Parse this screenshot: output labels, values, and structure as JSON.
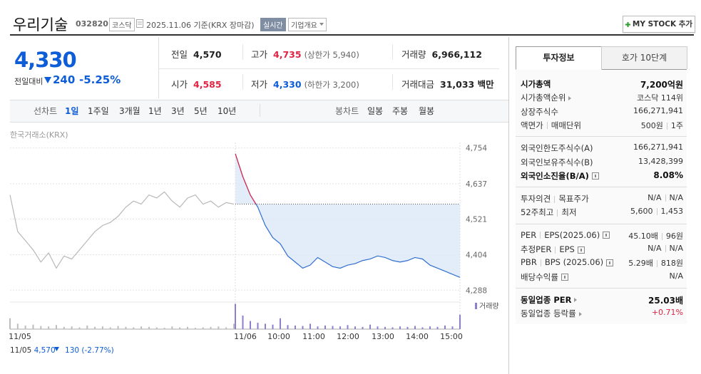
{
  "header": {
    "name": "우리기술",
    "code": "032820",
    "market": "코스닥",
    "date": "2025.11.06",
    "basis": "기준(KRX 장마감)",
    "realtime": "실시간",
    "company_info": "기업개요",
    "my_stock": "MY STOCK 추가"
  },
  "price": {
    "current": "4,330",
    "change_label": "전일대비",
    "change": "240",
    "change_pct": "-5.25%"
  },
  "summary": [
    {
      "label": "전일",
      "value": "4,570",
      "color": "#222222"
    },
    {
      "label": "고가",
      "value": "4,735",
      "note": "(상한가 5,940)",
      "color": "#e12343"
    },
    {
      "label": "거래량",
      "value": "6,966,112",
      "color": "#222222"
    },
    {
      "label": "시가",
      "value": "4,585",
      "color": "#e12343"
    },
    {
      "label": "저가",
      "value": "4,330",
      "note": "(하한가 3,200)",
      "color": "#0d5cd8"
    },
    {
      "label": "거래대금",
      "value": "31,033 백만",
      "color": "#222222"
    }
  ],
  "tabs": {
    "line_label": "선차트",
    "periods": [
      "1일",
      "1주일",
      "3개월",
      "1년",
      "3년",
      "5년",
      "10년"
    ],
    "candle_label": "봉차트",
    "candles": [
      "일봉",
      "주봉",
      "월봉"
    ]
  },
  "chart": {
    "source": "한국거래소(KRX)",
    "ylim": [
      4270,
      4772
    ],
    "yticks": [
      {
        "value": 4754,
        "label": "4,754"
      },
      {
        "value": 4637,
        "label": "4,637"
      },
      {
        "value": 4521,
        "label": "4,521"
      },
      {
        "value": 4404,
        "label": "4,404"
      },
      {
        "value": 4288,
        "label": "4,288"
      }
    ],
    "x_labels": [
      "11/05",
      "11/06",
      "10:00",
      "11:00",
      "12:00",
      "13:00",
      "14:00",
      "15:00"
    ],
    "prev_close": 4570,
    "series": [
      {
        "name": "11/05",
        "color": "#b8b8b8",
        "values": [
          4600,
          4480,
          4450,
          4420,
          4380,
          4410,
          4360,
          4400,
          4390,
          4420,
          4450,
          4480,
          4500,
          4510,
          4530,
          4560,
          4580,
          4570,
          4600,
          4590,
          4610,
          4580,
          4560,
          4590,
          4600,
          4570,
          4580,
          4560,
          4575,
          4570
        ]
      },
      {
        "name": "11/06",
        "color": "#2f6fd0",
        "values": [
          4735,
          4660,
          4600,
          4560,
          4500,
          4460,
          4440,
          4400,
          4380,
          4360,
          4370,
          4395,
          4380,
          4365,
          4360,
          4370,
          4375,
          4385,
          4390,
          4400,
          4395,
          4385,
          4380,
          4385,
          4395,
          4390,
          4370,
          4360,
          4350,
          4340,
          4330
        ]
      }
    ],
    "volume_label": "거래량",
    "volume_ylim": [
      0,
      300000
    ],
    "volume": [
      {
        "color": "#bdbdbd",
        "values": [
          120000,
          60000,
          40000,
          50000,
          35000,
          30000,
          45000,
          25000,
          30000,
          20000,
          40000,
          25000,
          30000,
          20000,
          35000,
          25000,
          20000,
          30000,
          25000,
          20000,
          15000,
          30000,
          20000,
          25000,
          15000,
          20000,
          25000,
          30000,
          20000,
          60000
        ]
      },
      {
        "color": "#8b7fcf",
        "values": [
          280000,
          150000,
          90000,
          70000,
          60000,
          50000,
          120000,
          45000,
          40000,
          35000,
          60000,
          30000,
          40000,
          35000,
          30000,
          45000,
          30000,
          25000,
          50000,
          30000,
          25000,
          20000,
          30000,
          25000,
          35000,
          20000,
          30000,
          25000,
          40000,
          30000,
          160000
        ]
      }
    ],
    "footer": {
      "date": "11/05",
      "close": "4,570",
      "change": "130",
      "change_pct": "(-2.77%)"
    }
  },
  "side": {
    "tabs": [
      "투자정보",
      "호가 10단계"
    ],
    "groups": [
      [
        {
          "label": [
            "시가총액"
          ],
          "value": [
            "7,200억원"
          ],
          "bold": true
        },
        {
          "label": [
            "시가총액순위"
          ],
          "arrow": true,
          "value": [
            "코스닥 114위"
          ]
        },
        {
          "label": [
            "상장주식수"
          ],
          "value": [
            "166,271,941"
          ]
        },
        {
          "label": [
            "액면가",
            "매매단위"
          ],
          "value": [
            "500원",
            "1주"
          ]
        }
      ],
      [
        {
          "label": [
            "외국인한도주식수(A)"
          ],
          "value": [
            "166,271,941"
          ]
        },
        {
          "label": [
            "외국인보유주식수(B)"
          ],
          "value": [
            "13,428,399"
          ]
        },
        {
          "label": [
            "외국인소진율(B/A)"
          ],
          "help": true,
          "value": [
            "8.08%"
          ],
          "bold": true
        }
      ],
      [
        {
          "label": [
            "투자의견",
            "목표주가"
          ],
          "value": [
            "N/A",
            "N/A"
          ]
        },
        {
          "label": [
            "52주최고",
            "최저"
          ],
          "value": [
            "5,600",
            "1,453"
          ]
        }
      ],
      [
        {
          "label": [
            "PER",
            "EPS(2025.06)"
          ],
          "help": true,
          "value": [
            "45.10배",
            "96원"
          ]
        },
        {
          "label": [
            "추정PER",
            "EPS"
          ],
          "help": true,
          "value": [
            "N/A",
            "N/A"
          ]
        },
        {
          "label": [
            "PBR",
            "BPS (2025.06)"
          ],
          "help": true,
          "value": [
            "5.29배",
            "818원"
          ]
        },
        {
          "label": [
            "배당수익률"
          ],
          "help": true,
          "value": [
            "N/A"
          ]
        }
      ],
      [
        {
          "label": [
            "동일업종 PER"
          ],
          "arrow": true,
          "value": [
            "25.03배"
          ],
          "bold": true
        },
        {
          "label": [
            "동일업종 등락률"
          ],
          "arrow": true,
          "value": [
            "+0.71%"
          ],
          "color": "#e12343"
        }
      ]
    ]
  }
}
